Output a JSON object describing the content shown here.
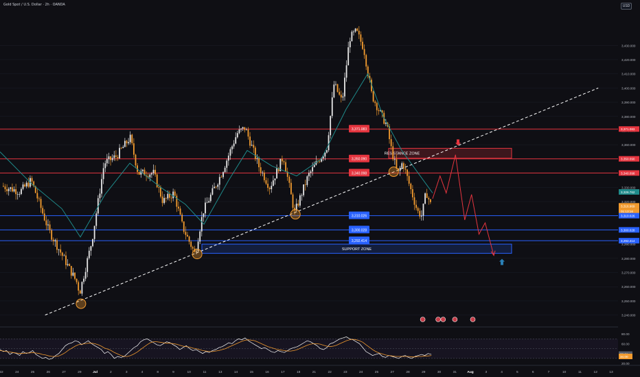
{
  "header": {
    "title": "Gold Spot / U.S. Dollar · 2h · OANDA",
    "currency_button": "USD"
  },
  "colors": {
    "background": "#0f0f14",
    "up_candle": "#e6e6e6",
    "down_candle": "#f29b2f",
    "resistance": "#e5353f",
    "support": "#2962ff",
    "ema": "#1f8a8a",
    "projection": "#e5353f",
    "up_arrow": "#2a7fb5",
    "rsi_line": "#ffffff",
    "rsi_ma": "#f29b2f"
  },
  "chart_data": {
    "type": "candlestick",
    "symbol": "Gold Spot / U.S. Dollar",
    "interval": "2h",
    "broker": "OANDA",
    "price_axis": {
      "range": [
        3235,
        3462
      ],
      "tick_labels": [
        "3,430.000",
        "3,420.000",
        "3,410.000",
        "3,400.000",
        "3,390.000",
        "3,380.000",
        "3,370.000",
        "3,360.000",
        "3,350.000",
        "3,340.000",
        "3,330.000",
        "3,320.000",
        "3,310.000",
        "3,300.000",
        "3,290.000",
        "3,280.000",
        "3,270.000",
        "3,260.000",
        "3,250.000",
        "3,240.000"
      ],
      "tick_values": [
        3430,
        3420,
        3410,
        3400,
        3390,
        3380,
        3370,
        3360,
        3350,
        3340,
        3330,
        3320,
        3310,
        3300,
        3290,
        3280,
        3270,
        3260,
        3250,
        3240
      ]
    },
    "time_axis": {
      "labels": [
        "22",
        "24",
        "25",
        "26",
        "27",
        "29",
        "Jul",
        "2",
        "3",
        "4",
        "8",
        "9",
        "10",
        "11",
        "13",
        "14",
        "15",
        "16",
        "17",
        "18",
        "21",
        "22",
        "23",
        "24",
        "25",
        "27",
        "28",
        "29",
        "30",
        "31",
        "Aug",
        "3",
        "4",
        "5",
        "6",
        "7",
        "10",
        "11",
        "12",
        "13"
      ],
      "bold": [
        "Jul",
        "Aug"
      ]
    },
    "horizontal_levels": [
      {
        "price": 3371.083,
        "label": "3,371.083",
        "color": "resistance"
      },
      {
        "price": 3350.09,
        "label": "3,350.090",
        "color": "resistance"
      },
      {
        "price": 3340.098,
        "label": "3,340.098",
        "color": "resistance"
      },
      {
        "price": 3310.026,
        "label": "3,310.026",
        "color": "support"
      },
      {
        "price": 3300.028,
        "label": "3,300.028",
        "color": "support"
      },
      {
        "price": 3292.414,
        "label": "3,292.414",
        "color": "support"
      }
    ],
    "axis_tags": [
      {
        "price": 3371.083,
        "text": "3,371.083",
        "color": "resistance"
      },
      {
        "price": 3350.09,
        "text": "3,350.090",
        "color": "resistance"
      },
      {
        "price": 3340.098,
        "text": "3,340.098",
        "color": "resistance"
      },
      {
        "price": 3326.762,
        "text": "3,326.762",
        "color": "ema"
      },
      {
        "price": 3316.969,
        "text": "3,316.969",
        "color": "down_candle"
      },
      {
        "price": 3313.2,
        "text": "01:13:16",
        "color": "down_candle"
      },
      {
        "price": 3310.026,
        "text": "3,310.026",
        "color": "support"
      },
      {
        "price": 3300.028,
        "text": "3,300.028",
        "color": "support"
      },
      {
        "price": 3292.414,
        "text": "3,292.414",
        "color": "support"
      }
    ],
    "zones": [
      {
        "name": "RESISTANCE ZONE",
        "top": 3357.5,
        "bottom": 3350.5
      },
      {
        "name": "SUPPORT ZONE",
        "top": 3290.0,
        "bottom": 3283.5
      }
    ],
    "anchors": [
      {
        "price": 3331,
        "x": 0.004
      },
      {
        "price": 3327,
        "x": 0.034
      },
      {
        "price": 3335,
        "x": 0.052
      },
      {
        "price": 3300,
        "x": 0.08
      },
      {
        "price": 3262,
        "x": 0.127
      },
      {
        "price": 3255,
        "x": 0.13
      },
      {
        "price": 3292,
        "x": 0.15
      },
      {
        "price": 3347,
        "x": 0.17
      },
      {
        "price": 3352,
        "x": 0.19
      },
      {
        "price": 3365,
        "x": 0.212
      },
      {
        "price": 3340,
        "x": 0.225
      },
      {
        "price": 3340,
        "x": 0.25
      },
      {
        "price": 3320,
        "x": 0.265
      },
      {
        "price": 3326,
        "x": 0.283
      },
      {
        "price": 3302,
        "x": 0.297
      },
      {
        "price": 3283,
        "x": 0.317
      },
      {
        "price": 3313,
        "x": 0.33
      },
      {
        "price": 3340,
        "x": 0.36
      },
      {
        "price": 3368,
        "x": 0.385
      },
      {
        "price": 3372,
        "x": 0.398
      },
      {
        "price": 3345,
        "x": 0.42
      },
      {
        "price": 3330,
        "x": 0.438
      },
      {
        "price": 3352,
        "x": 0.46
      },
      {
        "price": 3325,
        "x": 0.472
      },
      {
        "price": 3312,
        "x": 0.478
      },
      {
        "price": 3338,
        "x": 0.5
      },
      {
        "price": 3348,
        "x": 0.515
      },
      {
        "price": 3357,
        "x": 0.53
      },
      {
        "price": 3403,
        "x": 0.542
      },
      {
        "price": 3390,
        "x": 0.555
      },
      {
        "price": 3435,
        "x": 0.567
      },
      {
        "price": 3440,
        "x": 0.578
      },
      {
        "price": 3428,
        "x": 0.59
      },
      {
        "price": 3395,
        "x": 0.603
      },
      {
        "price": 3382,
        "x": 0.617
      },
      {
        "price": 3374,
        "x": 0.627
      },
      {
        "price": 3356,
        "x": 0.635
      },
      {
        "price": 3339,
        "x": 0.645
      },
      {
        "price": 3348,
        "x": 0.653
      },
      {
        "price": 3330,
        "x": 0.665
      },
      {
        "price": 3313,
        "x": 0.677
      },
      {
        "price": 3310,
        "x": 0.684
      },
      {
        "price": 3327,
        "x": 0.691
      },
      {
        "price": 3318,
        "x": 0.698
      }
    ],
    "ema_line": [
      {
        "x": 0.0,
        "price": 3355
      },
      {
        "x": 0.05,
        "price": 3333
      },
      {
        "x": 0.1,
        "price": 3315
      },
      {
        "x": 0.13,
        "price": 3295
      },
      {
        "x": 0.17,
        "price": 3325
      },
      {
        "x": 0.21,
        "price": 3347
      },
      {
        "x": 0.26,
        "price": 3330
      },
      {
        "x": 0.3,
        "price": 3318
      },
      {
        "x": 0.33,
        "price": 3304
      },
      {
        "x": 0.37,
        "price": 3335
      },
      {
        "x": 0.4,
        "price": 3356
      },
      {
        "x": 0.44,
        "price": 3345
      },
      {
        "x": 0.48,
        "price": 3338
      },
      {
        "x": 0.52,
        "price": 3350
      },
      {
        "x": 0.56,
        "price": 3385
      },
      {
        "x": 0.595,
        "price": 3410
      },
      {
        "x": 0.62,
        "price": 3380
      },
      {
        "x": 0.65,
        "price": 3356
      },
      {
        "x": 0.7,
        "price": 3326
      }
    ],
    "trendline": {
      "from": {
        "x": 0.073,
        "price": 3240
      },
      "to": {
        "x": 0.968,
        "price": 3400
      },
      "style": "dashed"
    },
    "projection_path": [
      {
        "x": 0.7,
        "price": 3322
      },
      {
        "x": 0.712,
        "price": 3338
      },
      {
        "x": 0.722,
        "price": 3326
      },
      {
        "x": 0.737,
        "price": 3353
      },
      {
        "x": 0.752,
        "price": 3307
      },
      {
        "x": 0.763,
        "price": 3325
      },
      {
        "x": 0.775,
        "price": 3297
      },
      {
        "x": 0.785,
        "price": 3305
      },
      {
        "x": 0.799,
        "price": 3282
      }
    ],
    "pivot_circles": [
      {
        "x": 0.131,
        "price": 3248
      },
      {
        "x": 0.319,
        "price": 3283
      },
      {
        "x": 0.478,
        "price": 3311
      },
      {
        "x": 0.637,
        "price": 3341
      }
    ],
    "event_icons_x": [
      0.684,
      0.709,
      0.717,
      0.736,
      0.765
    ],
    "rsi": {
      "tick_labels": [
        "80.00",
        "60.00",
        "40.00",
        "20.00"
      ],
      "tick_values": [
        80,
        60,
        40,
        20
      ],
      "range": [
        20,
        90
      ],
      "value_tags": [
        "38.81",
        "34.00"
      ],
      "value_tag_values": [
        38.81,
        34.0
      ],
      "line": [
        48,
        44,
        46,
        38,
        42,
        40,
        36,
        44,
        40,
        42,
        46,
        38,
        34,
        30,
        32,
        28,
        30,
        36,
        40,
        48,
        56,
        60,
        62,
        66,
        64,
        58,
        62,
        66,
        60,
        56,
        52,
        48,
        40,
        44,
        38,
        30,
        34,
        32,
        34,
        40,
        46,
        52,
        56,
        64,
        68,
        70,
        66,
        62,
        58,
        56,
        60,
        64,
        62,
        58,
        54,
        48,
        52,
        56,
        50,
        46,
        48,
        44,
        40,
        44,
        42,
        46,
        48,
        52,
        54,
        58,
        62,
        60,
        66,
        70,
        68,
        72,
        66,
        62,
        58,
        54,
        50,
        52,
        48,
        44,
        42,
        46,
        44,
        42,
        46,
        50,
        52,
        54,
        58,
        62,
        66,
        64,
        60,
        56,
        50,
        48,
        52,
        60,
        62,
        66,
        70,
        72,
        74,
        70,
        68,
        64,
        60,
        52,
        44,
        40,
        36,
        38,
        40,
        34,
        32,
        36,
        34,
        32,
        30,
        34,
        36,
        32,
        30,
        34,
        36,
        38,
        36,
        40,
        38
      ],
      "ma": [
        46,
        45,
        44,
        43,
        42,
        41,
        40,
        40,
        41,
        41,
        42,
        41,
        40,
        38,
        37,
        35,
        34,
        34,
        35,
        38,
        42,
        47,
        51,
        55,
        58,
        59,
        60,
        61,
        61,
        60,
        58,
        55,
        51,
        49,
        46,
        42,
        39,
        36,
        34,
        34,
        36,
        39,
        43,
        48,
        53,
        58,
        62,
        64,
        64,
        63,
        62,
        61,
        61,
        60,
        59,
        57,
        55,
        54,
        53,
        51,
        50,
        48,
        46,
        45,
        44,
        44,
        45,
        46,
        48,
        50,
        53,
        56,
        59,
        62,
        65,
        67,
        68,
        67,
        66,
        63,
        60,
        57,
        54,
        52,
        50,
        48,
        47,
        46,
        45,
        45,
        46,
        48,
        51,
        54,
        57,
        59,
        60,
        60,
        59,
        57,
        55,
        54,
        55,
        57,
        60,
        63,
        66,
        68,
        69,
        68,
        66,
        63,
        58,
        53,
        48,
        44,
        41,
        39,
        37,
        36,
        35,
        34,
        34,
        34,
        34,
        34,
        33,
        33,
        34,
        34,
        35,
        35,
        36
      ]
    }
  }
}
